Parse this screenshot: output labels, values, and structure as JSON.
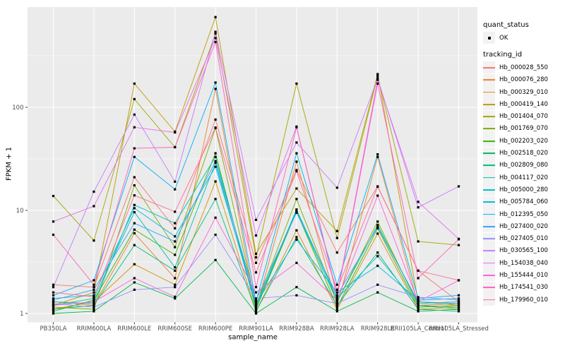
{
  "chart_data": {
    "type": "line",
    "title": "",
    "xlabel": "sample_name",
    "ylabel": "FPKM + 1",
    "yscale": "log10",
    "yticks": [
      1,
      10,
      100
    ],
    "ylim": [
      0.93,
      950
    ],
    "grid": true,
    "panel_bg": "#EBEBEB",
    "grid_color": "#FFFFFF",
    "tick_color": "#333333",
    "tick_label_color": "#4D4D4D",
    "point_color": "#000000",
    "legend_position": "right",
    "x_categories": [
      "PB350LA",
      "RRIM600LA",
      "RRIM600LE",
      "RRIM600SE",
      "RRIM600PE",
      "RRIM901LA",
      "RRIM928BA",
      "RRIM928LA",
      "RRIM928LE",
      "RRII105LA_Control",
      "RRII105LA_Stressed"
    ],
    "legend": {
      "quant_status": {
        "title": "quant_status",
        "items": [
          {
            "label": "OK",
            "glyph": "point",
            "color": "#000000"
          }
        ]
      },
      "tracking_id": {
        "title": "tracking_id",
        "note": "items are the series below"
      }
    },
    "series": [
      {
        "name": "Hb_000028_550",
        "color": "#F8766D",
        "values": [
          1.9,
          1.8,
          21,
          6.7,
          76,
          3.1,
          24.6,
          3.9,
          17.1,
          2.6,
          1.3
        ]
      },
      {
        "name": "Hb_000076_280",
        "color": "#EA8331",
        "values": [
          1.3,
          1.2,
          6.0,
          2.2,
          151,
          1.1,
          29.7,
          1.2,
          33,
          1.2,
          1.25
        ]
      },
      {
        "name": "Hb_000329_010",
        "color": "#D89000",
        "values": [
          1.1,
          1.3,
          3.0,
          1.9,
          19.1,
          1.05,
          6.4,
          1.1,
          5.95,
          1.1,
          1.15
        ]
      },
      {
        "name": "Hb_000419_140",
        "color": "#C09B00",
        "values": [
          1.2,
          1.6,
          170,
          58,
          750,
          3.8,
          16.3,
          6.3,
          210,
          1.3,
          1.2
        ]
      },
      {
        "name": "Hb_001404_070",
        "color": "#A3A500",
        "values": [
          13.8,
          5.1,
          120,
          41,
          520,
          3.5,
          170,
          5.4,
          200,
          5.0,
          4.6
        ]
      },
      {
        "name": "Hb_001769_070",
        "color": "#7CAE00",
        "values": [
          1.15,
          1.1,
          17.5,
          4.4,
          63,
          1.2,
          12.9,
          1.3,
          7.8,
          1.2,
          1.1
        ]
      },
      {
        "name": "Hb_002203_020",
        "color": "#39B600",
        "values": [
          1.05,
          1.35,
          6.5,
          3.7,
          35.8,
          1.1,
          9.8,
          1.15,
          6.7,
          1.15,
          1.2
        ]
      },
      {
        "name": "Hb_002518_020",
        "color": "#00BB4E",
        "values": [
          1.0,
          1.05,
          2.0,
          1.4,
          3.3,
          1.0,
          1.8,
          1.05,
          1.6,
          1.05,
          1.1
        ]
      },
      {
        "name": "Hb_002809_080",
        "color": "#00BF7D",
        "values": [
          1.1,
          1.2,
          4.6,
          2.6,
          12.9,
          1.05,
          5.5,
          1.2,
          3.9,
          1.1,
          1.05
        ]
      },
      {
        "name": "Hb_004117_020",
        "color": "#00C1A3",
        "values": [
          1.2,
          1.4,
          9.6,
          2.8,
          29,
          1.15,
          9.9,
          1.3,
          7.2,
          1.25,
          1.3
        ]
      },
      {
        "name": "Hb_005000_280",
        "color": "#00BFC4",
        "values": [
          1.3,
          1.25,
          11.3,
          7.5,
          33,
          1.2,
          10.2,
          1.4,
          3.6,
          1.2,
          1.15
        ]
      },
      {
        "name": "Hb_005784_060",
        "color": "#00BAE0",
        "values": [
          1.4,
          1.5,
          10.5,
          5.6,
          26.5,
          1.25,
          5.2,
          1.6,
          2.9,
          1.35,
          1.4
        ]
      },
      {
        "name": "Hb_012395_050",
        "color": "#00B0F6",
        "values": [
          1.5,
          2.1,
          33,
          16,
          174,
          1.3,
          35.8,
          1.9,
          35,
          1.4,
          1.5
        ]
      },
      {
        "name": "Hb_027400_020",
        "color": "#35A2FF",
        "values": [
          1.35,
          1.7,
          7.5,
          5.0,
          30,
          1.35,
          9.5,
          1.5,
          6.9,
          1.3,
          1.25
        ]
      },
      {
        "name": "Hb_027405_010",
        "color": "#9590FF",
        "values": [
          1.25,
          1.15,
          1.7,
          1.8,
          5.8,
          1.4,
          1.5,
          1.25,
          1.9,
          1.44,
          1.35
        ]
      },
      {
        "name": "Hb_030565_100",
        "color": "#C77CFF",
        "values": [
          1.8,
          15.2,
          85,
          19,
          540,
          8.1,
          45.5,
          16.6,
          190,
          10.7,
          17.1
        ]
      },
      {
        "name": "Hb_154038_040",
        "color": "#E76BF3",
        "values": [
          7.8,
          11,
          64,
          57,
          470,
          5.7,
          65,
          1.5,
          185,
          12.1,
          5.3
        ]
      },
      {
        "name": "Hb_155444_010",
        "color": "#FA62DB",
        "values": [
          1.2,
          1.3,
          2.2,
          1.45,
          8.5,
          1.6,
          3.1,
          1.35,
          13.9,
          1.3,
          2.1
        ]
      },
      {
        "name": "Hb_174541_030",
        "color": "#FF62BC",
        "values": [
          5.8,
          1.9,
          40,
          41,
          430,
          1.8,
          64,
          1.45,
          170,
          2.2,
          5.25
        ]
      },
      {
        "name": "Hb_179960_010",
        "color": "#FF6A98",
        "values": [
          1.6,
          1.45,
          14,
          9.7,
          63.5,
          2.5,
          24,
          1.7,
          17,
          2.6,
          2.1
        ]
      }
    ]
  }
}
